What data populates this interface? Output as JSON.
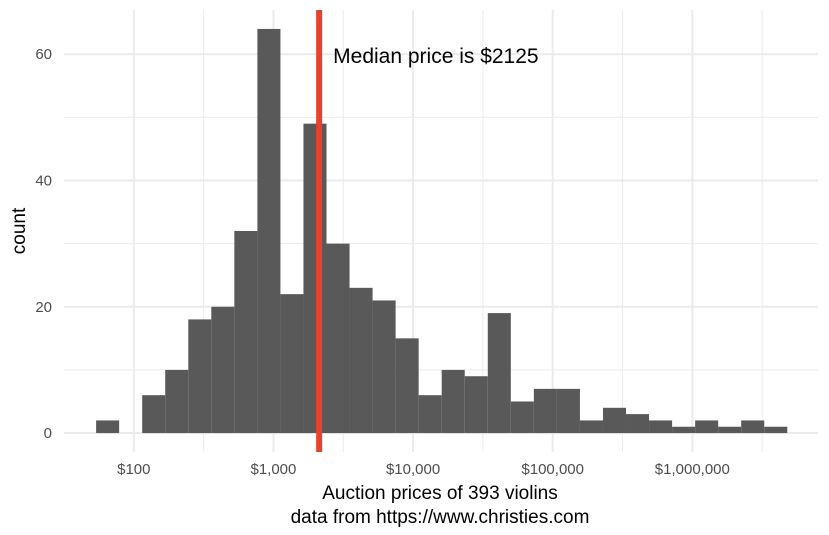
{
  "chart_data": {
    "type": "histogram",
    "title": "",
    "xlabel": "Auction prices of 393 violins",
    "xlabel_sub": "data from https://www.christies.com",
    "ylabel": "count",
    "x_scale": "log10",
    "xlim_log10": [
      1.5,
      6.9
    ],
    "ylim": [
      -3,
      67
    ],
    "x_ticks": [
      {
        "value": 100,
        "label": "$100"
      },
      {
        "value": 1000,
        "label": "$1,000"
      },
      {
        "value": 10000,
        "label": "$10,000"
      },
      {
        "value": 100000,
        "label": "$100,000"
      },
      {
        "value": 1000000,
        "label": "$1,000,000"
      }
    ],
    "y_ticks": [
      {
        "value": 0,
        "label": "0"
      },
      {
        "value": 20,
        "label": "20"
      },
      {
        "value": 40,
        "label": "40"
      },
      {
        "value": 60,
        "label": "60"
      }
    ],
    "bins": [
      {
        "start_log10": 1.73,
        "end_log10": 1.895,
        "count": 2
      },
      {
        "start_log10": 1.895,
        "end_log10": 2.06,
        "count": 0
      },
      {
        "start_log10": 2.06,
        "end_log10": 2.225,
        "count": 6
      },
      {
        "start_log10": 2.225,
        "end_log10": 2.39,
        "count": 10
      },
      {
        "start_log10": 2.39,
        "end_log10": 2.555,
        "count": 18
      },
      {
        "start_log10": 2.555,
        "end_log10": 2.72,
        "count": 20
      },
      {
        "start_log10": 2.72,
        "end_log10": 2.885,
        "count": 32
      },
      {
        "start_log10": 2.885,
        "end_log10": 3.05,
        "count": 64
      },
      {
        "start_log10": 3.05,
        "end_log10": 3.215,
        "count": 22
      },
      {
        "start_log10": 3.215,
        "end_log10": 3.38,
        "count": 49
      },
      {
        "start_log10": 3.38,
        "end_log10": 3.545,
        "count": 30
      },
      {
        "start_log10": 3.545,
        "end_log10": 3.71,
        "count": 23
      },
      {
        "start_log10": 3.71,
        "end_log10": 3.875,
        "count": 21
      },
      {
        "start_log10": 3.875,
        "end_log10": 4.04,
        "count": 15
      },
      {
        "start_log10": 4.04,
        "end_log10": 4.205,
        "count": 6
      },
      {
        "start_log10": 4.205,
        "end_log10": 4.37,
        "count": 10
      },
      {
        "start_log10": 4.37,
        "end_log10": 4.535,
        "count": 9
      },
      {
        "start_log10": 4.535,
        "end_log10": 4.7,
        "count": 19
      },
      {
        "start_log10": 4.7,
        "end_log10": 4.865,
        "count": 5
      },
      {
        "start_log10": 4.865,
        "end_log10": 5.03,
        "count": 7
      },
      {
        "start_log10": 5.03,
        "end_log10": 5.195,
        "count": 7
      },
      {
        "start_log10": 5.195,
        "end_log10": 5.36,
        "count": 2
      },
      {
        "start_log10": 5.36,
        "end_log10": 5.525,
        "count": 4
      },
      {
        "start_log10": 5.525,
        "end_log10": 5.69,
        "count": 3
      },
      {
        "start_log10": 5.69,
        "end_log10": 5.855,
        "count": 2
      },
      {
        "start_log10": 5.855,
        "end_log10": 6.02,
        "count": 1
      },
      {
        "start_log10": 6.02,
        "end_log10": 6.185,
        "count": 2
      },
      {
        "start_log10": 6.185,
        "end_log10": 6.35,
        "count": 1
      },
      {
        "start_log10": 6.35,
        "end_log10": 6.515,
        "count": 2
      },
      {
        "start_log10": 6.515,
        "end_log10": 6.68,
        "count": 1
      }
    ],
    "bar_color": "#595959",
    "median": {
      "value": 2125,
      "label": "Median price is $2125",
      "color": "#e8412c"
    },
    "grid": true,
    "grid_color": "#ebebeb"
  }
}
